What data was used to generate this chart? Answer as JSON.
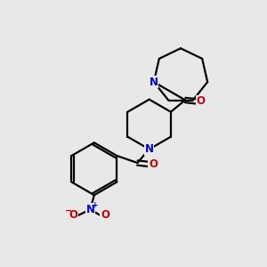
{
  "bg_color": "#e8e8e8",
  "bond_color": "#000000",
  "N_color": "#0000cc",
  "O_color": "#cc0000",
  "line_width": 1.6,
  "font_size_label": 8.5,
  "figsize": [
    3.0,
    3.0
  ],
  "dpi": 100,
  "xlim": [
    0,
    10
  ],
  "ylim": [
    0,
    10
  ]
}
